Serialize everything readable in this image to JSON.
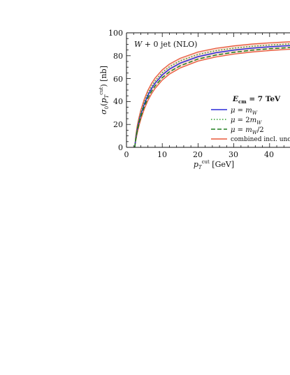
{
  "chart_data": {
    "type": "line",
    "title": "W + 0 jet (NLO)",
    "xlabel": "p_T^cut [GeV]",
    "ylabel": "σ_0(p_T^cut) [nb]",
    "xlim": [
      0,
      50
    ],
    "ylim": [
      0,
      100
    ],
    "x_ticks": [
      "0",
      "10",
      "20",
      "30",
      "40"
    ],
    "y_ticks": [
      "0",
      "20",
      "40",
      "60",
      "80",
      "100"
    ],
    "legend_header": "E_cm = 7 TeV",
    "legend_position": "right",
    "grid": false,
    "x": [
      2.3,
      2.6,
      3,
      3.5,
      4,
      5,
      6,
      7,
      8,
      10,
      12,
      15,
      20,
      25,
      30,
      35,
      40,
      45,
      50
    ],
    "series": [
      {
        "name": "μ = m_W",
        "style": "solid",
        "color": "#2a2ad8",
        "values": [
          0,
          7.9,
          15.5,
          22.5,
          28.5,
          38.0,
          45.5,
          51.3,
          56.0,
          63.2,
          68.3,
          73.5,
          79.2,
          82.6,
          84.9,
          86.6,
          87.8,
          88.7,
          89.4
        ]
      },
      {
        "name": "μ = 2m_W",
        "style": "dotted",
        "color": "#2ca02c",
        "values": [
          0,
          8.6,
          16.5,
          23.7,
          29.9,
          39.7,
          47.3,
          53.2,
          58.0,
          65.2,
          70.3,
          75.5,
          81.1,
          84.4,
          86.6,
          88.2,
          89.3,
          90.2,
          90.9
        ]
      },
      {
        "name": "μ = m_W/2",
        "style": "dashed",
        "color": "#1e7d1e",
        "values": [
          0,
          7.0,
          14.2,
          21.0,
          26.7,
          35.9,
          43.2,
          48.9,
          53.6,
          60.8,
          65.9,
          71.2,
          77.1,
          80.6,
          83.0,
          84.8,
          86.1,
          87.0,
          87.8
        ]
      }
    ],
    "band": {
      "name": "combined incl. unc.",
      "color": "#e8593a",
      "upper": [
        0,
        10.3,
        18.8,
        26.2,
        32.5,
        42.3,
        49.9,
        55.8,
        60.6,
        67.7,
        72.7,
        77.8,
        83.3,
        86.5,
        88.6,
        90.2,
        91.3,
        92.1,
        92.7
      ],
      "lower": [
        0,
        5.6,
        12.3,
        18.8,
        24.4,
        33.6,
        40.9,
        46.7,
        51.4,
        58.7,
        63.9,
        69.3,
        75.3,
        78.9,
        81.4,
        83.2,
        84.5,
        85.5,
        86.3
      ]
    }
  }
}
